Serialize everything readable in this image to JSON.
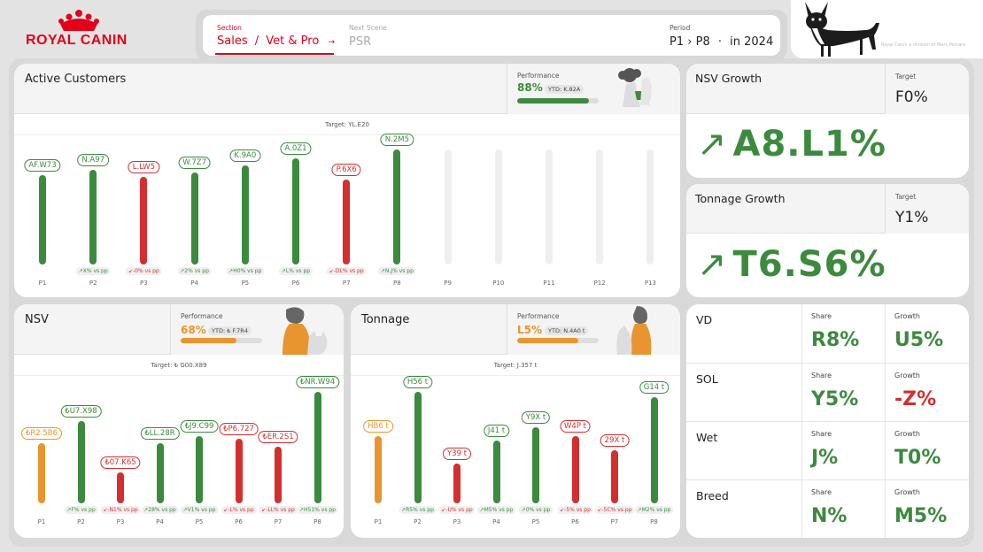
{
  "brand": {
    "name": "ROYAL CANIN",
    "tagline": "Royal Canin a division of Mars Petcare"
  },
  "nav": {
    "section_label": "Section",
    "section_value": "Sales",
    "section_sep": "/",
    "section_sub": "Vet & Pro",
    "arrow": "→",
    "next_label": "Next Scene",
    "next_value": "PSR",
    "period_label": "Period",
    "period_from": "P1",
    "period_sep": "›",
    "period_to": "P8",
    "period_dot": "·",
    "period_year": "in 2024"
  },
  "active_customers": {
    "title": "Active Customers",
    "perf_label": "Performance",
    "perf_value": "88%",
    "perf_fraction": 0.88,
    "ytd": "YTD: K.82A",
    "target": "Target: YL.E20",
    "bars": [
      {
        "period": "P1",
        "value": "AF.W73",
        "level": 0.78,
        "color": "green",
        "vs": ""
      },
      {
        "period": "P2",
        "value": "N.A97",
        "level": 0.82,
        "color": "green",
        "vs": "↗X% vs pp"
      },
      {
        "period": "P3",
        "value": "L.LW5",
        "level": 0.76,
        "color": "red",
        "vs": "↙-0% vs pp"
      },
      {
        "period": "P4",
        "value": "W.7Z7",
        "level": 0.8,
        "color": "green",
        "vs": "↗2% vs pp"
      },
      {
        "period": "P5",
        "value": "K.9A0",
        "level": 0.86,
        "color": "green",
        "vs": "↗H0% vs pp"
      },
      {
        "period": "P6",
        "value": "A.0Z1",
        "level": 0.92,
        "color": "green",
        "vs": "↗L% vs pp"
      },
      {
        "period": "P7",
        "value": "P.6X6",
        "level": 0.74,
        "color": "red",
        "vs": "↙-DL% vs pp"
      },
      {
        "period": "P8",
        "value": "N.2M5",
        "level": 1.0,
        "color": "green",
        "vs": "↗N.J% vs pp"
      },
      {
        "period": "P9",
        "value": "",
        "level": 1.0,
        "color": "empty",
        "vs": ""
      },
      {
        "period": "P10",
        "value": "",
        "level": 1.0,
        "color": "empty",
        "vs": ""
      },
      {
        "period": "P11",
        "value": "",
        "level": 1.0,
        "color": "empty",
        "vs": ""
      },
      {
        "period": "P12",
        "value": "",
        "level": 1.0,
        "color": "empty",
        "vs": ""
      },
      {
        "period": "P13",
        "value": "",
        "level": 1.0,
        "color": "empty",
        "vs": ""
      }
    ]
  },
  "nsv": {
    "title": "NSV",
    "perf_label": "Performance",
    "perf_value": "68%",
    "perf_fraction": 0.68,
    "ytd": "YTD: ₺ F.7R4",
    "target": "Target: ₺ G00.X89",
    "bars": [
      {
        "period": "P1",
        "value": "₺R2.5B6",
        "level": 0.54,
        "color": "orange",
        "vs": ""
      },
      {
        "period": "P2",
        "value": "₺U7.X98",
        "level": 0.74,
        "color": "green",
        "vs": "↗F% vs pp"
      },
      {
        "period": "P3",
        "value": "₺07.K65",
        "level": 0.28,
        "color": "red",
        "vs": "↙-N1% vs pp"
      },
      {
        "period": "P4",
        "value": "₺LL.28R",
        "level": 0.54,
        "color": "green",
        "vs": "↗28% vs pp"
      },
      {
        "period": "P5",
        "value": "₺J9.C99",
        "level": 0.6,
        "color": "green",
        "vs": "↗V1% vs pp"
      },
      {
        "period": "P6",
        "value": "₺P6.727",
        "level": 0.58,
        "color": "red",
        "vs": "↙-L% vs pp"
      },
      {
        "period": "P7",
        "value": "₺ER.2S1",
        "level": 0.51,
        "color": "red",
        "vs": "↙-LL% vs pp"
      },
      {
        "period": "P8",
        "value": "₺NR.W94",
        "level": 1.0,
        "color": "green",
        "vs": "↗H51% vs pp"
      }
    ]
  },
  "tonnage": {
    "title": "Tonnage",
    "perf_label": "Performance",
    "perf_value": "L5%",
    "perf_fraction": 0.75,
    "ytd": "YTD: N.4A0 t",
    "target": "Target: J.357 t",
    "bars": [
      {
        "period": "P1",
        "value": "HB6 t",
        "level": 0.6,
        "color": "orange",
        "vs": ""
      },
      {
        "period": "P2",
        "value": "H56 t",
        "level": 1.0,
        "color": "green",
        "vs": "↗R5% vs pp"
      },
      {
        "period": "P3",
        "value": "Y39 t",
        "level": 0.36,
        "color": "red",
        "vs": "↙-U% vs pp"
      },
      {
        "period": "P4",
        "value": "J41 t",
        "level": 0.56,
        "color": "green",
        "vs": "↗M5% vs pp"
      },
      {
        "period": "P5",
        "value": "Y9X t",
        "level": 0.68,
        "color": "green",
        "vs": "↗0% vs pp"
      },
      {
        "period": "P6",
        "value": "W4P t",
        "level": 0.6,
        "color": "red",
        "vs": "↙-5% vs pp"
      },
      {
        "period": "P7",
        "value": "29X t",
        "level": 0.48,
        "color": "red",
        "vs": "↙-5C% vs pp"
      },
      {
        "period": "P8",
        "value": "G14 t",
        "level": 0.95,
        "color": "green",
        "vs": "↗M2% vs pp"
      }
    ]
  },
  "nsv_growth": {
    "title": "NSV Growth",
    "target_label": "Target",
    "target_value": "F0%",
    "value": "A8.L1%",
    "arrow": "↗"
  },
  "tonnage_growth": {
    "title": "Tonnage Growth",
    "target_label": "Target",
    "target_value": "Y1%",
    "value": "T6.S6%",
    "arrow": "↗"
  },
  "segments": [
    {
      "name": "VD",
      "share_label": "Share",
      "share": "R8%",
      "growth_label": "Growth",
      "growth": "U5%",
      "growth_color": "#3c8a3e"
    },
    {
      "name": "SOL",
      "share_label": "Share",
      "share": "Y5%",
      "growth_label": "Growth",
      "growth": "-Z%",
      "growth_color": "#d32f2f"
    },
    {
      "name": "Wet",
      "share_label": "Share",
      "share": "J%",
      "growth_label": "Growth",
      "growth": "T0%",
      "growth_color": "#3c8a3e"
    },
    {
      "name": "Breed",
      "share_label": "Share",
      "share": "N%",
      "growth_label": "Growth",
      "growth": "M5%",
      "growth_color": "#3c8a3e"
    }
  ],
  "colors": {
    "green": "#3c8a3e",
    "red": "#d32f2f",
    "orange": "#e8952f",
    "empty": "#efefef",
    "brand_red": "#e2001a"
  }
}
